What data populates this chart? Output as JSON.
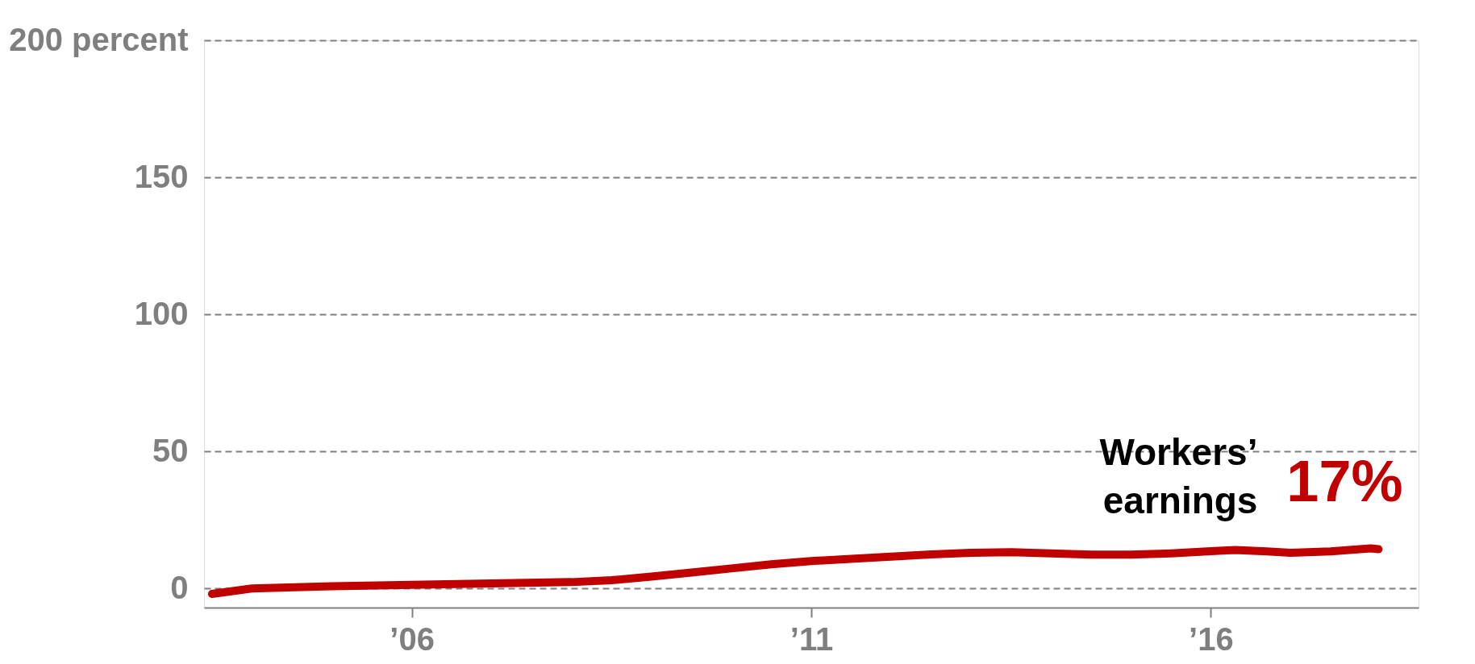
{
  "chart_data": {
    "type": "line",
    "x": [
      2003.5,
      2004,
      2005,
      2006,
      2007,
      2008,
      2008.5,
      2009,
      2009.5,
      2010,
      2010.5,
      2011,
      2011.5,
      2012,
      2012.5,
      2013,
      2013.5,
      2014,
      2014.5,
      2015,
      2015.5,
      2016,
      2016.3,
      2016.7,
      2017,
      2017.5,
      2018,
      2018.1
    ],
    "series": [
      {
        "name": "Workers’ earnings",
        "color": "#c00000",
        "values": [
          -2,
          0,
          0.8,
          1.3,
          1.8,
          2.3,
          3,
          4.3,
          5.8,
          7.3,
          8.8,
          10,
          10.8,
          11.6,
          12.4,
          13,
          13.2,
          12.8,
          12.3,
          12.3,
          12.8,
          13.6,
          14,
          13.5,
          13,
          13.5,
          14.6,
          14.3
        ]
      }
    ],
    "ylim": [
      -7,
      200
    ],
    "yticks": [
      0,
      50,
      100,
      150,
      {
        "value": 200,
        "label": "200 percent"
      }
    ],
    "xlim": [
      2003.4,
      2018.6
    ],
    "xticks": [
      {
        "value": 2006,
        "label": "’06"
      },
      {
        "value": 2011,
        "label": "’11"
      },
      {
        "value": 2016,
        "label": "’16"
      }
    ],
    "grid": "y",
    "line_style": "solid",
    "marker": "none",
    "legend": false,
    "annotations": [
      "17%"
    ]
  }
}
